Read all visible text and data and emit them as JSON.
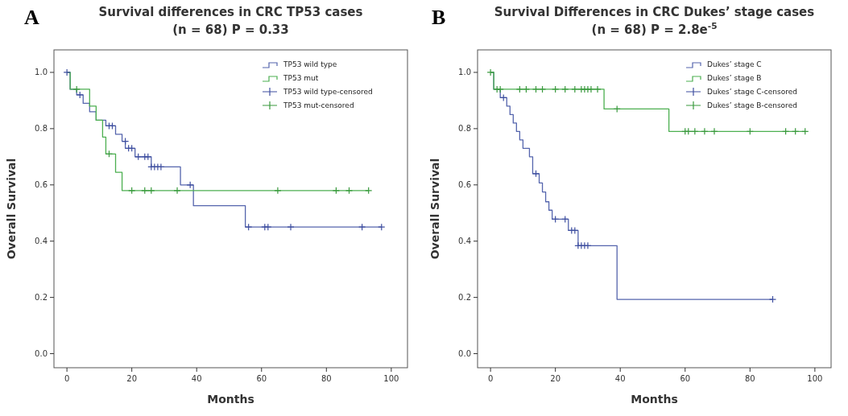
{
  "chart_data": [
    {
      "type": "step",
      "title": "Survival differences in CRC TP53 cases",
      "subtitle": "(n = 68) P = 0.33",
      "xlabel": "Months",
      "ylabel": "Overall Survival",
      "annotations": [
        "A"
      ],
      "xlim": [
        -4,
        105
      ],
      "ylim": [
        -0.05,
        1.08
      ],
      "xticks": [
        0,
        20,
        40,
        60,
        80,
        100
      ],
      "yticks": [
        {
          "value": 0,
          "label": "0.0"
        },
        {
          "value": 0.2,
          "label": "0.2"
        },
        {
          "value": 0.4,
          "label": "0.4"
        },
        {
          "value": 0.6,
          "label": "0.6"
        },
        {
          "value": 0.8,
          "label": "0.8"
        },
        {
          "value": 1,
          "label": "1.0"
        }
      ],
      "legend": "top right",
      "grid": false,
      "line_style": "solid",
      "series": [
        {
          "name": "TP53 wild type",
          "color": "#5565ad",
          "x": [
            0,
            1,
            3,
            5,
            7,
            9,
            12,
            15,
            17,
            18,
            21,
            26,
            35,
            39,
            55,
            97
          ],
          "values": [
            1,
            0.94,
            0.92,
            0.89,
            0.86,
            0.83,
            0.81,
            0.78,
            0.755,
            0.73,
            0.7,
            0.664,
            0.6,
            0.526,
            0.45,
            0.45
          ]
        },
        {
          "name": "TP53 mut",
          "color": "#4caf50",
          "x": [
            0,
            1,
            7,
            9,
            11,
            12,
            15,
            17,
            93
          ],
          "values": [
            1,
            0.94,
            0.88,
            0.83,
            0.77,
            0.71,
            0.645,
            0.58,
            0.58
          ]
        },
        {
          "name": "TP53 wild type-censored",
          "type": "scatter",
          "marker": "cross",
          "color": "#3f4fa0",
          "x": [
            0,
            4,
            13,
            14,
            18,
            19,
            20,
            22,
            24,
            25,
            26,
            27,
            28,
            29,
            38,
            56,
            61,
            62,
            69,
            91,
            97
          ],
          "values": [
            1,
            0.92,
            0.81,
            0.81,
            0.755,
            0.73,
            0.73,
            0.7,
            0.7,
            0.7,
            0.664,
            0.664,
            0.664,
            0.664,
            0.6,
            0.45,
            0.45,
            0.45,
            0.45,
            0.45,
            0.45
          ]
        },
        {
          "name": "TP53 mut-censored",
          "type": "scatter",
          "marker": "cross",
          "color": "#3a9a3e",
          "x": [
            3,
            13,
            20,
            24,
            26,
            34,
            65,
            83,
            87,
            93
          ],
          "values": [
            0.94,
            0.71,
            0.58,
            0.58,
            0.58,
            0.58,
            0.58,
            0.58,
            0.58,
            0.58
          ]
        }
      ]
    },
    {
      "type": "step",
      "title": "Survival Differences in CRC Dukes’ stage cases",
      "subtitle": "(n = 68) P = 2.8e$^{-5}$",
      "xlabel": "Months",
      "ylabel": "Overall Survival",
      "annotations": [
        "B"
      ],
      "xlim": [
        -4,
        105
      ],
      "ylim": [
        -0.05,
        1.08
      ],
      "xticks": [
        0,
        20,
        40,
        60,
        80,
        100
      ],
      "yticks": [
        {
          "value": 0,
          "label": "0.0"
        },
        {
          "value": 0.2,
          "label": "0.2"
        },
        {
          "value": 0.4,
          "label": "0.4"
        },
        {
          "value": 0.6,
          "label": "0.6"
        },
        {
          "value": 0.8,
          "label": "0.8"
        },
        {
          "value": 1,
          "label": "1.0"
        }
      ],
      "legend": "top right",
      "grid": false,
      "line_style": "solid",
      "series": [
        {
          "name": "Dukes’ stage C",
          "color": "#5565ad",
          "x": [
            0,
            1,
            3,
            5,
            6,
            7,
            8,
            9,
            10,
            12,
            13,
            15,
            16,
            17,
            18,
            19,
            24,
            27,
            39,
            87
          ],
          "values": [
            1,
            0.94,
            0.91,
            0.88,
            0.85,
            0.82,
            0.79,
            0.76,
            0.73,
            0.7,
            0.64,
            0.607,
            0.575,
            0.54,
            0.51,
            0.478,
            0.438,
            0.384,
            0.193,
            0.193
          ]
        },
        {
          "name": "Dukes’ stage B",
          "color": "#4caf50",
          "x": [
            0,
            1,
            35,
            55,
            97
          ],
          "values": [
            1,
            0.94,
            0.87,
            0.79,
            0.79
          ]
        },
        {
          "name": "Dukes’ stage C-censored",
          "type": "scatter",
          "marker": "cross",
          "color": "#3f4fa0",
          "x": [
            4,
            14,
            20,
            23,
            25,
            26,
            27,
            28,
            29,
            30,
            87
          ],
          "values": [
            0.91,
            0.64,
            0.478,
            0.478,
            0.438,
            0.438,
            0.384,
            0.384,
            0.384,
            0.384,
            0.193
          ]
        },
        {
          "name": "Dukes’ stage B-censored",
          "type": "scatter",
          "marker": "cross",
          "color": "#3a9a3e",
          "x": [
            0,
            2,
            3,
            9,
            11,
            14,
            16,
            20,
            23,
            26,
            28,
            29,
            30,
            31,
            33,
            39,
            60,
            61,
            63,
            66,
            69,
            80,
            91,
            94,
            97
          ],
          "values": [
            1,
            0.94,
            0.94,
            0.94,
            0.94,
            0.94,
            0.94,
            0.94,
            0.94,
            0.94,
            0.94,
            0.94,
            0.94,
            0.94,
            0.94,
            0.87,
            0.79,
            0.79,
            0.79,
            0.79,
            0.79,
            0.79,
            0.79,
            0.79,
            0.79
          ]
        }
      ]
    }
  ]
}
